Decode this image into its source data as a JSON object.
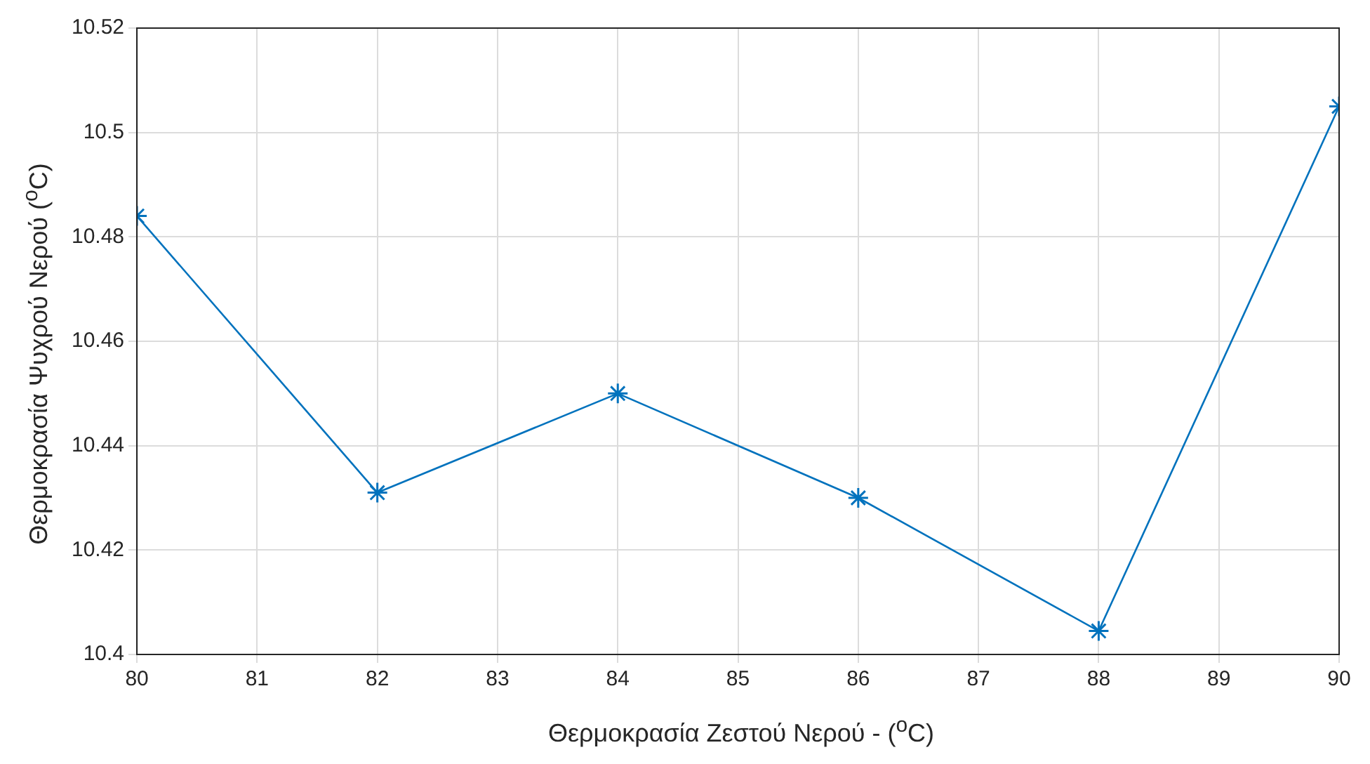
{
  "chart_data": {
    "type": "line",
    "xlabel": "Θερμοκρασία Ζεστού Νερού - ($^{o}$C)",
    "ylabel": "Θερμοκρασία Ψυχρού Νερού ($^{o}$C)",
    "x": [
      80,
      82,
      84,
      86,
      88,
      90
    ],
    "series": [
      {
        "color": "#0072bd",
        "values": [
          10.484,
          10.431,
          10.45,
          10.43,
          10.4045,
          10.505
        ]
      }
    ],
    "xlim": [
      80,
      90
    ],
    "xticks": [
      80,
      81,
      82,
      83,
      84,
      85,
      86,
      87,
      88,
      89,
      90
    ],
    "ylim": [
      10.4,
      10.52
    ],
    "yticks": [
      10.4,
      10.42,
      10.44,
      10.46,
      10.48,
      10.5,
      10.52
    ],
    "grid": true,
    "legend": false,
    "marker": "cross",
    "line_style": "solid"
  }
}
